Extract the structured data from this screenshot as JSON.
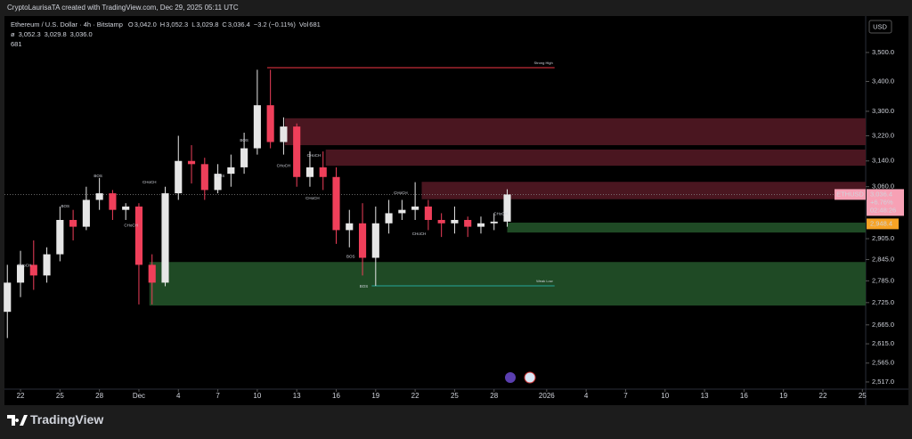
{
  "header": {
    "title": "CryptoLaurisaTA created with TradingView.com, Dec 29, 2025 05:11 UTC"
  },
  "chart_data": {
    "type": "candlestick",
    "symbol": "Ethereum / U.S. Dollar · 4h · Bitstamp",
    "ohlc": [
      {
        "key": "O",
        "value": "3,042.0"
      },
      {
        "key": "H",
        "value": "3,052.3"
      },
      {
        "key": "L",
        "value": "3,029.8"
      },
      {
        "key": "C",
        "value": "3,036.4"
      }
    ],
    "change": "−3.2 (−0.11%)",
    "volume_key": "Vol",
    "volume_value": "681",
    "indicator": [
      "ø",
      "3,052.3",
      "3,029.8",
      "3,036.0"
    ],
    "indicator_volume": "681",
    "currency": "USD",
    "up_color": "#e6e6e6",
    "down_color": "#ef3f5a",
    "x": [
      -1,
      0,
      1,
      2,
      3,
      4,
      5,
      6,
      7,
      8,
      9,
      10,
      11,
      12,
      13,
      14,
      15,
      16,
      17,
      18,
      19,
      20,
      21,
      22,
      23,
      24,
      25,
      26,
      27,
      28,
      29,
      30,
      31,
      32,
      33,
      34,
      35,
      36,
      37
    ],
    "open": [
      2700,
      2780,
      2830,
      2800,
      2860,
      2960,
      2940,
      3020,
      3040,
      2990,
      3000,
      2830,
      2780,
      3040,
      3140,
      3130,
      3050,
      3100,
      3120,
      3180,
      3320,
      3200,
      3250,
      3090,
      3120,
      3090,
      2930,
      2950,
      2850,
      2950,
      2980,
      2990,
      3000,
      2960,
      2950,
      2960,
      2940,
      2950,
      2955
    ],
    "high": [
      2830,
      2870,
      2900,
      2880,
      3000,
      2990,
      3060,
      3087,
      3050,
      3010,
      3010,
      2860,
      3060,
      3220,
      3190,
      3150,
      3130,
      3160,
      3230,
      3440,
      3440,
      3280,
      3260,
      3170,
      3170,
      3120,
      2990,
      3010,
      3000,
      3020,
      3020,
      3074,
      3020,
      2980,
      3000,
      2970,
      2970,
      2980,
      3052.3
    ],
    "low": [
      2630,
      2740,
      2760,
      2780,
      2840,
      2900,
      2930,
      2990,
      2960,
      2960,
      2720,
      2720,
      2770,
      3020,
      3070,
      3020,
      3040,
      3060,
      3100,
      3160,
      3180,
      3160,
      3060,
      3060,
      3050,
      2890,
      2880,
      2800,
      2771,
      2920,
      2960,
      2960,
      2930,
      2910,
      2920,
      2910,
      2920,
      2930,
      2940
    ],
    "close": [
      2780,
      2830,
      2800,
      2860,
      2960,
      2940,
      3020,
      3040,
      2990,
      3000,
      2830,
      2780,
      3040,
      3140,
      3130,
      3050,
      3100,
      3120,
      3180,
      3320,
      3200,
      3250,
      3090,
      3120,
      3090,
      2930,
      2950,
      2850,
      2950,
      2980,
      2990,
      3000,
      2960,
      2950,
      2960,
      2940,
      2950,
      2955,
      3036.4
    ],
    "xlim": [
      -1.22,
      64.25
    ],
    "xticks": [
      {
        "value": 0,
        "label": "22"
      },
      {
        "value": 3,
        "label": "25"
      },
      {
        "value": 6,
        "label": "28"
      },
      {
        "value": 9,
        "label": "Dec"
      },
      {
        "value": 12,
        "label": "4"
      },
      {
        "value": 15,
        "label": "7"
      },
      {
        "value": 18,
        "label": "10"
      },
      {
        "value": 21,
        "label": "13"
      },
      {
        "value": 24,
        "label": "16"
      },
      {
        "value": 27,
        "label": "19"
      },
      {
        "value": 30,
        "label": "22"
      },
      {
        "value": 33,
        "label": "25"
      },
      {
        "value": 36,
        "label": "28"
      },
      {
        "value": 40,
        "label": "2026"
      },
      {
        "value": 43,
        "label": "4"
      },
      {
        "value": 46,
        "label": "7"
      },
      {
        "value": 49,
        "label": "10"
      },
      {
        "value": 52,
        "label": "13"
      },
      {
        "value": 55,
        "label": "16"
      },
      {
        "value": 58,
        "label": "19"
      },
      {
        "value": 61,
        "label": "22"
      },
      {
        "value": 64,
        "label": "25"
      }
    ],
    "ylim": [
      2499,
      3630
    ],
    "log": true,
    "yticks": [
      {
        "value": 3500,
        "label": "3,500.0"
      },
      {
        "value": 3400,
        "label": "3,400.0"
      },
      {
        "value": 3300,
        "label": "3,300.0"
      },
      {
        "value": 3220,
        "label": "3,220.0"
      },
      {
        "value": 3140,
        "label": "3,140.0"
      },
      {
        "value": 3060,
        "label": "3,060.0"
      },
      {
        "value": 2905,
        "label": "2,905.0"
      },
      {
        "value": 2845,
        "label": "2,845.0"
      },
      {
        "value": 2785,
        "label": "2,785.0"
      },
      {
        "value": 2725,
        "label": "2,725.0"
      },
      {
        "value": 2665,
        "label": "2,665.0"
      },
      {
        "value": 2615,
        "label": "2,615.0"
      },
      {
        "value": 2565,
        "label": "2,565.0"
      },
      {
        "value": 2517,
        "label": "2,517.0"
      }
    ],
    "price_tag": {
      "symbol": "ETHUSD",
      "price": {
        "value": 3036.4,
        "label": "3,036.4"
      },
      "change": "+6.76%",
      "countdown": "02:48:26"
    },
    "level_tag": {
      "value": 2948.4,
      "label": "2,948.4"
    },
    "zones": [
      {
        "x0": 20.1,
        "top": 3277,
        "bottom": 3190,
        "color": "#4a1620"
      },
      {
        "x0": 23.2,
        "top": 3176,
        "bottom": 3125,
        "color": "#4a1620"
      },
      {
        "x0": 30.5,
        "top": 3075,
        "bottom": 3022,
        "color": "#4a1620"
      },
      {
        "x0": 37.0,
        "top": 2952,
        "bottom": 2923,
        "color": "#1f4a25"
      },
      {
        "x0": 9.8,
        "top": 2838,
        "bottom": 2717,
        "color": "#1f4a25"
      }
    ],
    "lines": [
      {
        "name": "Strong High",
        "x0": 18.75,
        "x1": 40.6,
        "y": 3447,
        "color": "#f23645"
      },
      {
        "name": "Weak Low",
        "x0": 26.7,
        "x1": 40.6,
        "y": 2771,
        "color": "#26a69a"
      }
    ],
    "annotations": [
      {
        "text": "CHoCH",
        "x": 0.3,
        "y": 2828,
        "color": "#26a69a"
      },
      {
        "text": "BOS",
        "x": 3.4,
        "y": 3000,
        "color": "#f23645"
      },
      {
        "text": "BOS",
        "x": 5.9,
        "y": 3093,
        "color": "#26a69a"
      },
      {
        "text": "CHoCH",
        "x": 8.4,
        "y": 2944,
        "color": "#f23645"
      },
      {
        "text": "CHoCH",
        "x": 9.8,
        "y": 3073,
        "color": "#26a69a"
      },
      {
        "text": "BOS",
        "x": 15.2,
        "y": 3093,
        "color": "#26a69a"
      },
      {
        "text": "BOS",
        "x": 17,
        "y": 3205,
        "color": "#26a69a"
      },
      {
        "text": "CHoCH",
        "x": 20,
        "y": 3125,
        "color": "#f23645"
      },
      {
        "text": "CHoCH",
        "x": 22.3,
        "y": 3156,
        "color": "#26a69a"
      },
      {
        "text": "CHoCH",
        "x": 22.2,
        "y": 3025,
        "color": "#f23645"
      },
      {
        "text": "BOS",
        "x": 25.1,
        "y": 2853,
        "color": "#f23645"
      },
      {
        "text": "BOS",
        "x": 26.1,
        "y": 2769,
        "color": "#f23645"
      },
      {
        "text": "CHoCH",
        "x": 28.9,
        "y": 3041,
        "color": "#26a69a"
      },
      {
        "text": "CHoCH",
        "x": 30.3,
        "y": 2918,
        "color": "#f23645"
      },
      {
        "text": "CHoCH",
        "x": 36.5,
        "y": 2978,
        "color": "#26a69a"
      }
    ]
  },
  "footer": {
    "brand": "TradingView"
  }
}
